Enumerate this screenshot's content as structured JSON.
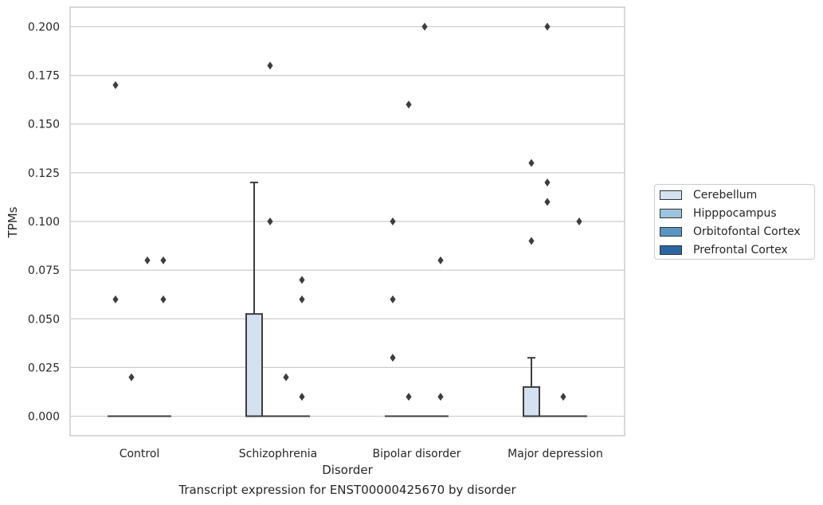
{
  "chart_data": {
    "type": "box",
    "xlabel": "Disorder",
    "ylabel": "TPMs",
    "caption": "Transcript expression for ENST00000425670 by disorder",
    "categories": [
      "Control",
      "Schizophrenia",
      "Bipolar disorder",
      "Major depression"
    ],
    "ylim": [
      -0.01,
      0.21
    ],
    "yticks": [
      0.0,
      0.025,
      0.05,
      0.075,
      0.1,
      0.125,
      0.15,
      0.175,
      0.2
    ],
    "ytick_labels": [
      "0.000",
      "0.025",
      "0.050",
      "0.075",
      "0.100",
      "0.125",
      "0.150",
      "0.175",
      "0.200"
    ],
    "grid": true,
    "legend_position": "right",
    "series": [
      {
        "name": "Cerebellum",
        "color": "#d3e1f0"
      },
      {
        "name": "Hipppocampus",
        "color": "#9cc4de"
      },
      {
        "name": "Orbitofontal Cortex",
        "color": "#5895c3"
      },
      {
        "name": "Prefrontal Cortex",
        "color": "#2b66a3"
      }
    ],
    "boxes": [
      {
        "category": "Control",
        "series": "Cerebellum",
        "q1": 0,
        "median": 0,
        "q3": 0,
        "whisker_low": 0,
        "whisker_high": 0,
        "outliers": [
          0.17,
          0.06
        ]
      },
      {
        "category": "Control",
        "series": "Hipppocampus",
        "q1": 0,
        "median": 0,
        "q3": 0,
        "whisker_low": 0,
        "whisker_high": 0,
        "outliers": [
          0.02
        ]
      },
      {
        "category": "Control",
        "series": "Orbitofontal Cortex",
        "q1": 0,
        "median": 0,
        "q3": 0,
        "whisker_low": 0,
        "whisker_high": 0,
        "outliers": [
          0.08
        ]
      },
      {
        "category": "Control",
        "series": "Prefrontal Cortex",
        "q1": 0,
        "median": 0,
        "q3": 0,
        "whisker_low": 0,
        "whisker_high": 0,
        "outliers": [
          0.08,
          0.06
        ]
      },
      {
        "category": "Schizophrenia",
        "series": "Cerebellum",
        "q1": 0,
        "median": 0,
        "q3": 0.0525,
        "whisker_low": 0,
        "whisker_high": 0.12,
        "outliers": []
      },
      {
        "category": "Schizophrenia",
        "series": "Hipppocampus",
        "q1": 0,
        "median": 0,
        "q3": 0,
        "whisker_low": 0,
        "whisker_high": 0,
        "outliers": [
          0.18,
          0.1
        ]
      },
      {
        "category": "Schizophrenia",
        "series": "Orbitofontal Cortex",
        "q1": 0,
        "median": 0,
        "q3": 0,
        "whisker_low": 0,
        "whisker_high": 0,
        "outliers": [
          0.02
        ]
      },
      {
        "category": "Schizophrenia",
        "series": "Prefrontal Cortex",
        "q1": 0,
        "median": 0,
        "q3": 0,
        "whisker_low": 0,
        "whisker_high": 0,
        "outliers": [
          0.07,
          0.06,
          0.01
        ]
      },
      {
        "category": "Bipolar disorder",
        "series": "Cerebellum",
        "q1": 0,
        "median": 0,
        "q3": 0,
        "whisker_low": 0,
        "whisker_high": 0,
        "outliers": [
          0.1,
          0.06,
          0.03
        ]
      },
      {
        "category": "Bipolar disorder",
        "series": "Hipppocampus",
        "q1": 0,
        "median": 0,
        "q3": 0,
        "whisker_low": 0,
        "whisker_high": 0,
        "outliers": [
          0.16,
          0.01
        ]
      },
      {
        "category": "Bipolar disorder",
        "series": "Orbitofontal Cortex",
        "q1": 0,
        "median": 0,
        "q3": 0,
        "whisker_low": 0,
        "whisker_high": 0,
        "outliers": [
          0.2
        ]
      },
      {
        "category": "Bipolar disorder",
        "series": "Prefrontal Cortex",
        "q1": 0,
        "median": 0,
        "q3": 0,
        "whisker_low": 0,
        "whisker_high": 0,
        "outliers": [
          0.08,
          0.01
        ]
      },
      {
        "category": "Major depression",
        "series": "Cerebellum",
        "q1": 0,
        "median": 0,
        "q3": 0.015,
        "whisker_low": 0,
        "whisker_high": 0.03,
        "outliers": [
          0.13,
          0.09
        ]
      },
      {
        "category": "Major depression",
        "series": "Hipppocampus",
        "q1": 0,
        "median": 0,
        "q3": 0,
        "whisker_low": 0,
        "whisker_high": 0,
        "outliers": [
          0.2,
          0.12,
          0.11
        ]
      },
      {
        "category": "Major depression",
        "series": "Orbitofontal Cortex",
        "q1": 0,
        "median": 0,
        "q3": 0,
        "whisker_low": 0,
        "whisker_high": 0,
        "outliers": [
          0.01
        ]
      },
      {
        "category": "Major depression",
        "series": "Prefrontal Cortex",
        "q1": 0,
        "median": 0,
        "q3": 0,
        "whisker_low": 0,
        "whisker_high": 0,
        "outliers": [
          0.1
        ]
      }
    ]
  }
}
